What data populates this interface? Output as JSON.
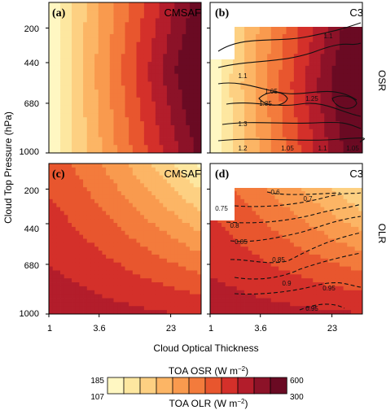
{
  "chart_data": [
    {
      "type": "heatmap",
      "panel_label": "(a)",
      "dataset": "CMSAF",
      "variable": "TOA OSR",
      "x_scale": "log",
      "x_range": [
        1,
        40
      ],
      "y_range": [
        1000,
        100
      ],
      "y_inverted": true,
      "description_of_field": "OSR increases with optical thickness; highest at large tau and mid-pressure (~400-500 hPa)",
      "z_range": [
        185,
        600
      ]
    },
    {
      "type": "heatmap",
      "panel_label": "(b)",
      "dataset": "C3",
      "variable": "TOA OSR",
      "x_scale": "log",
      "x_range": [
        1,
        40
      ],
      "y_range": [
        1000,
        100
      ],
      "y_inverted": true,
      "side_label": "OSR",
      "contour_ratio_labels": [
        "1.1",
        "1.1",
        "1.05",
        "1.35",
        "1.25",
        "1.3",
        "1.2",
        "1.05",
        "1.1",
        "1.05"
      ],
      "z_range": [
        185,
        600
      ]
    },
    {
      "type": "heatmap",
      "panel_label": "(c)",
      "dataset": "CMSAF",
      "variable": "TOA OLR",
      "x_scale": "log",
      "x_range": [
        1,
        40
      ],
      "y_range": [
        1000,
        100
      ],
      "y_inverted": true,
      "description_of_field": "OLR high near surface/low clouds, lowest for high thick clouds",
      "z_range": [
        107,
        300
      ]
    },
    {
      "type": "heatmap",
      "panel_label": "(d)",
      "dataset": "C3",
      "variable": "TOA OLR",
      "x_scale": "log",
      "x_range": [
        1,
        40
      ],
      "y_range": [
        1000,
        100
      ],
      "y_inverted": true,
      "side_label": "OLR",
      "contour_ratio_labels": [
        "0.6",
        "0.7",
        "0.75",
        "0.8",
        "0.85",
        "0.85",
        "0.9",
        "0.95",
        "0.95"
      ],
      "z_range": [
        107,
        300
      ]
    }
  ],
  "axes": {
    "ylabel": "Cloud Top Pressure (hPa)",
    "xlabel": "Cloud Optical Thickness",
    "yticks": [
      "200",
      "440",
      "680",
      "1000"
    ],
    "xticks": [
      "1",
      "3.6",
      "23"
    ]
  },
  "colorbar": {
    "osr_title": "TOA OSR (W m",
    "olr_title": "TOA OLR (W m",
    "unit_sup": "−2",
    "close_paren": ")",
    "osr_min": "185",
    "osr_max": "600",
    "olr_min": "107",
    "olr_max": "300",
    "colors": [
      "#fff7c2",
      "#fde7a0",
      "#fdd082",
      "#fcb565",
      "#f99a4e",
      "#f37b3c",
      "#e8562e",
      "#d4302a",
      "#b31d2b",
      "#8c1228",
      "#6a0a23"
    ]
  }
}
